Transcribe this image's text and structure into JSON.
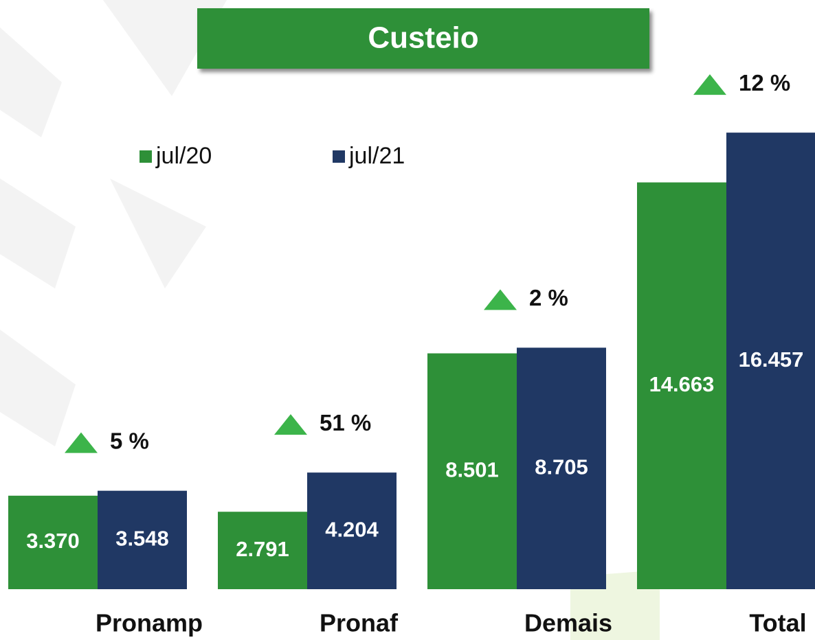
{
  "chart_data": {
    "type": "bar",
    "title": "Custeio",
    "categories": [
      "Pronamp",
      "Pronaf",
      "Demais",
      "Total"
    ],
    "series": [
      {
        "name": "jul/20",
        "color": "#2e9038",
        "values": [
          3370,
          2791,
          8501,
          14663
        ],
        "value_labels": [
          "3.370",
          "2.791",
          "8.501",
          "14.663"
        ]
      },
      {
        "name": "jul/21",
        "color": "#203864",
        "values": [
          3548,
          4204,
          8705,
          16457
        ],
        "value_labels": [
          "3.548",
          "4.204",
          "8.705",
          "16.457"
        ]
      }
    ],
    "annotations": [
      "5 %",
      "51 %",
      "2 %",
      "12 %"
    ],
    "annotation_color": "#3cb44a"
  }
}
